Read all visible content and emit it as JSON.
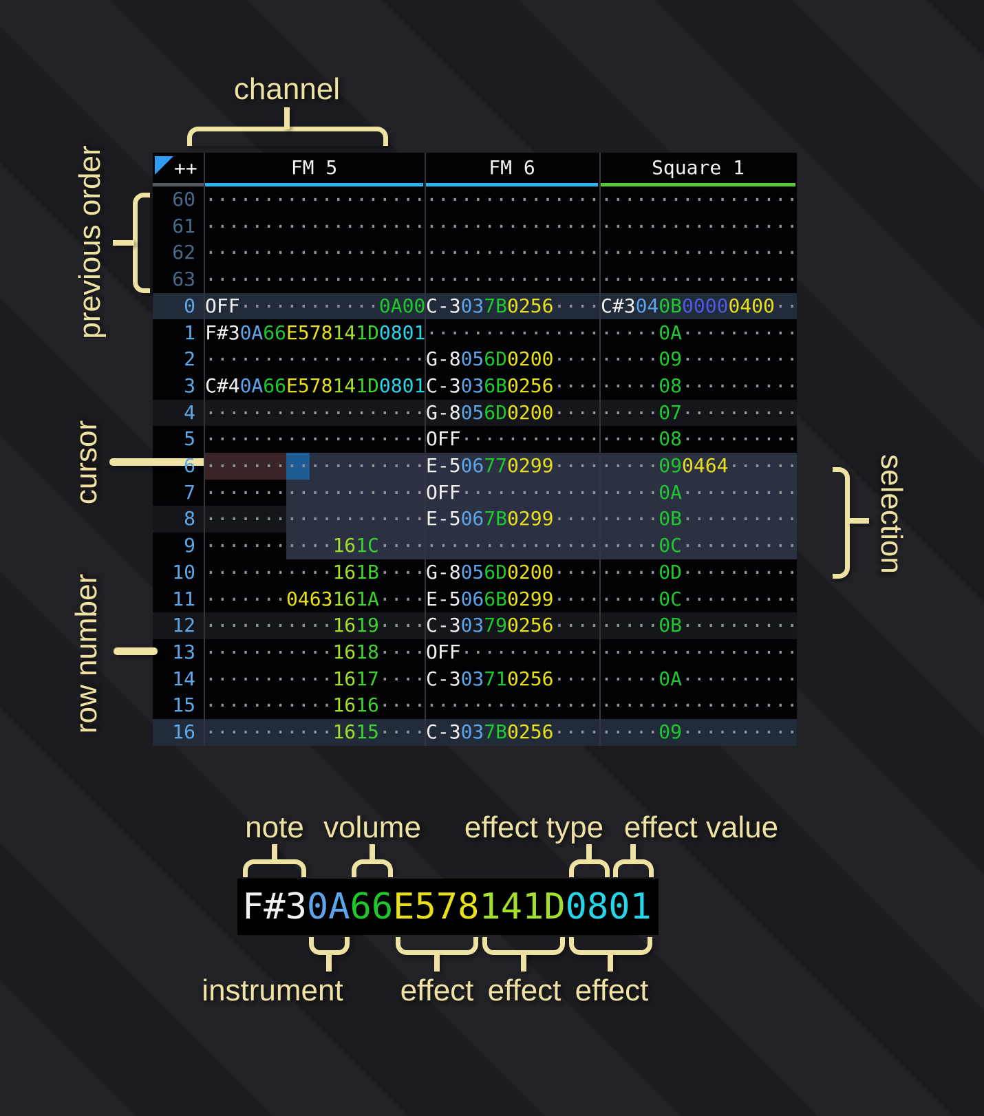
{
  "header": {
    "corner": "++",
    "channels": [
      {
        "label": "FM 5",
        "underline": "#29b4f2"
      },
      {
        "label": "FM 6",
        "underline": "#29b4f2"
      },
      {
        "label": "Square 1",
        "underline": "#55cb33"
      }
    ]
  },
  "colors": {
    "table-bg": "#020205",
    "c-n": "#f2f2f2",
    "c-i": "#5ca5ea",
    "c-v": "#1ec92e",
    "c-ey": "#e8e019",
    "c-el": "#a3e02b",
    "c-eg": "#3bd32c",
    "c-ec": "#27d6e8",
    "c-ei": "#5457e2",
    "c-d": "#909497",
    "rownum": "#5fa8e8",
    "rownum-dim": "#49698a",
    "underline-corner": "#55585e",
    "sel": "#2b3142",
    "cursor": "#1e5c96",
    "cursor-row": "#3b2427",
    "h1": "#15161b",
    "h2": "#222b39",
    "ann": "#efe3a4"
  },
  "annotations": {
    "channel": "channel",
    "previous_order": "previous order",
    "cursor": "cursor",
    "row_number": "row number",
    "selection": "selection",
    "note": "note",
    "volume": "volume",
    "effect_type": "effect type",
    "effect_value": "effect value",
    "instrument": "instrument",
    "effect": "effect"
  },
  "legend": {
    "segments": [
      [
        "F#3",
        "n"
      ],
      [
        "0A",
        "i"
      ],
      [
        "66",
        "v"
      ],
      [
        "E578",
        "ey"
      ],
      [
        "141D",
        "el"
      ],
      [
        "0801",
        "ec"
      ]
    ]
  },
  "pattern": {
    "rows": [
      {
        "num": "60",
        "dim": true,
        "hl": "",
        "fm5": [
          [
            "...................",
            "d"
          ]
        ],
        "fm6": [
          [
            "...............",
            "d"
          ]
        ],
        "s1": [
          [
            ".................",
            "d"
          ]
        ]
      },
      {
        "num": "61",
        "dim": true,
        "hl": "",
        "fm5": [
          [
            "...................",
            "d"
          ]
        ],
        "fm6": [
          [
            "...............",
            "d"
          ]
        ],
        "s1": [
          [
            ".................",
            "d"
          ]
        ]
      },
      {
        "num": "62",
        "dim": true,
        "hl": "",
        "fm5": [
          [
            "...................",
            "d"
          ]
        ],
        "fm6": [
          [
            "...............",
            "d"
          ]
        ],
        "s1": [
          [
            ".................",
            "d"
          ]
        ]
      },
      {
        "num": "63",
        "dim": true,
        "hl": "",
        "fm5": [
          [
            "...................",
            "d"
          ]
        ],
        "fm6": [
          [
            "...............",
            "d"
          ]
        ],
        "s1": [
          [
            ".................",
            "d"
          ]
        ]
      },
      {
        "num": "0",
        "dim": false,
        "hl": "h2",
        "fm5": [
          [
            "OFF",
            "n"
          ],
          [
            "............",
            "d"
          ],
          [
            "0A00",
            "v"
          ]
        ],
        "fm6": [
          [
            "C-3",
            "n"
          ],
          [
            "03",
            "i"
          ],
          [
            "7B",
            "v"
          ],
          [
            "0256",
            "ey"
          ],
          [
            "....",
            "d"
          ]
        ],
        "s1": [
          [
            "C#3",
            "n"
          ],
          [
            "04",
            "i"
          ],
          [
            "0B",
            "v"
          ],
          [
            "0000",
            "ei"
          ],
          [
            "0400",
            "ey"
          ],
          [
            "..",
            "d"
          ]
        ]
      },
      {
        "num": "1",
        "dim": false,
        "hl": "",
        "fm5": [
          [
            "F#3",
            "n"
          ],
          [
            "0A",
            "i"
          ],
          [
            "66",
            "v"
          ],
          [
            "E578",
            "ey"
          ],
          [
            "14",
            "el"
          ],
          [
            "1D",
            "eg"
          ],
          [
            "0801",
            "ec"
          ]
        ],
        "fm6": [
          [
            "...............",
            "d"
          ]
        ],
        "s1": [
          [
            ".....",
            "d"
          ],
          [
            "0A",
            "v"
          ],
          [
            "..........",
            "d"
          ]
        ]
      },
      {
        "num": "2",
        "dim": false,
        "hl": "",
        "fm5": [
          [
            "...................",
            "d"
          ]
        ],
        "fm6": [
          [
            "G-8",
            "n"
          ],
          [
            "05",
            "i"
          ],
          [
            "6D",
            "v"
          ],
          [
            "0200",
            "ey"
          ],
          [
            "....",
            "d"
          ]
        ],
        "s1": [
          [
            ".....",
            "d"
          ],
          [
            "09",
            "v"
          ],
          [
            "..........",
            "d"
          ]
        ]
      },
      {
        "num": "3",
        "dim": false,
        "hl": "",
        "fm5": [
          [
            "C#4",
            "n"
          ],
          [
            "0A",
            "i"
          ],
          [
            "66",
            "v"
          ],
          [
            "E578",
            "ey"
          ],
          [
            "14",
            "el"
          ],
          [
            "1D",
            "eg"
          ],
          [
            "0801",
            "ec"
          ]
        ],
        "fm6": [
          [
            "C-3",
            "n"
          ],
          [
            "03",
            "i"
          ],
          [
            "6B",
            "v"
          ],
          [
            "0256",
            "ey"
          ],
          [
            "....",
            "d"
          ]
        ],
        "s1": [
          [
            ".....",
            "d"
          ],
          [
            "08",
            "v"
          ],
          [
            "..........",
            "d"
          ]
        ]
      },
      {
        "num": "4",
        "dim": false,
        "hl": "h1",
        "fm5": [
          [
            "...................",
            "d"
          ]
        ],
        "fm6": [
          [
            "G-8",
            "n"
          ],
          [
            "05",
            "i"
          ],
          [
            "6D",
            "v"
          ],
          [
            "0200",
            "ey"
          ],
          [
            "....",
            "d"
          ]
        ],
        "s1": [
          [
            ".....",
            "d"
          ],
          [
            "07",
            "v"
          ],
          [
            "..........",
            "d"
          ]
        ]
      },
      {
        "num": "5",
        "dim": false,
        "hl": "",
        "fm5": [
          [
            "...................",
            "d"
          ]
        ],
        "fm6": [
          [
            "OFF",
            "n"
          ],
          [
            "............",
            "d"
          ]
        ],
        "s1": [
          [
            ".....",
            "d"
          ],
          [
            "08",
            "v"
          ],
          [
            "..........",
            "d"
          ]
        ]
      },
      {
        "num": "6",
        "dim": false,
        "hl": "",
        "fm5": [
          [
            "...................",
            "d"
          ]
        ],
        "fm6": [
          [
            "E-5",
            "n"
          ],
          [
            "06",
            "i"
          ],
          [
            "77",
            "v"
          ],
          [
            "0299",
            "ey"
          ],
          [
            "....",
            "d"
          ]
        ],
        "s1": [
          [
            ".....",
            "d"
          ],
          [
            "09",
            "v"
          ],
          [
            "0464",
            "ey"
          ],
          [
            "......",
            "d"
          ]
        ]
      },
      {
        "num": "7",
        "dim": false,
        "hl": "",
        "fm5": [
          [
            "...................",
            "d"
          ]
        ],
        "fm6": [
          [
            "OFF",
            "n"
          ],
          [
            "............",
            "d"
          ]
        ],
        "s1": [
          [
            ".....",
            "d"
          ],
          [
            "0A",
            "v"
          ],
          [
            "..........",
            "d"
          ]
        ]
      },
      {
        "num": "8",
        "dim": false,
        "hl": "h1",
        "fm5": [
          [
            "...................",
            "d"
          ]
        ],
        "fm6": [
          [
            "E-5",
            "n"
          ],
          [
            "06",
            "i"
          ],
          [
            "7B",
            "v"
          ],
          [
            "0299",
            "ey"
          ],
          [
            "....",
            "d"
          ]
        ],
        "s1": [
          [
            ".....",
            "d"
          ],
          [
            "0B",
            "v"
          ],
          [
            "..........",
            "d"
          ]
        ]
      },
      {
        "num": "9",
        "dim": false,
        "hl": "",
        "fm5": [
          [
            "...........",
            "d"
          ],
          [
            "16",
            "el"
          ],
          [
            "1C",
            "eg"
          ],
          [
            "....",
            "d"
          ]
        ],
        "fm6": [
          [
            "...............",
            "d"
          ]
        ],
        "s1": [
          [
            ".....",
            "d"
          ],
          [
            "0C",
            "v"
          ],
          [
            "..........",
            "d"
          ]
        ]
      },
      {
        "num": "10",
        "dim": false,
        "hl": "",
        "fm5": [
          [
            "...........",
            "d"
          ],
          [
            "16",
            "el"
          ],
          [
            "1B",
            "eg"
          ],
          [
            "....",
            "d"
          ]
        ],
        "fm6": [
          [
            "G-8",
            "n"
          ],
          [
            "05",
            "i"
          ],
          [
            "6D",
            "v"
          ],
          [
            "0200",
            "ey"
          ],
          [
            "....",
            "d"
          ]
        ],
        "s1": [
          [
            ".....",
            "d"
          ],
          [
            "0D",
            "v"
          ],
          [
            "..........",
            "d"
          ]
        ]
      },
      {
        "num": "11",
        "dim": false,
        "hl": "",
        "fm5": [
          [
            ".......",
            "d"
          ],
          [
            "0463",
            "ey"
          ],
          [
            "16",
            "el"
          ],
          [
            "1A",
            "eg"
          ],
          [
            "....",
            "d"
          ]
        ],
        "fm6": [
          [
            "E-5",
            "n"
          ],
          [
            "06",
            "i"
          ],
          [
            "6B",
            "v"
          ],
          [
            "0299",
            "ey"
          ],
          [
            "....",
            "d"
          ]
        ],
        "s1": [
          [
            ".....",
            "d"
          ],
          [
            "0C",
            "v"
          ],
          [
            "..........",
            "d"
          ]
        ]
      },
      {
        "num": "12",
        "dim": false,
        "hl": "h1",
        "fm5": [
          [
            "...........",
            "d"
          ],
          [
            "16",
            "el"
          ],
          [
            "19",
            "eg"
          ],
          [
            "....",
            "d"
          ]
        ],
        "fm6": [
          [
            "C-3",
            "n"
          ],
          [
            "03",
            "i"
          ],
          [
            "79",
            "v"
          ],
          [
            "0256",
            "ey"
          ],
          [
            "....",
            "d"
          ]
        ],
        "s1": [
          [
            ".....",
            "d"
          ],
          [
            "0B",
            "v"
          ],
          [
            "..........",
            "d"
          ]
        ]
      },
      {
        "num": "13",
        "dim": false,
        "hl": "",
        "fm5": [
          [
            "...........",
            "d"
          ],
          [
            "16",
            "el"
          ],
          [
            "18",
            "eg"
          ],
          [
            "....",
            "d"
          ]
        ],
        "fm6": [
          [
            "OFF",
            "n"
          ],
          [
            "............",
            "d"
          ]
        ],
        "s1": [
          [
            ".................",
            "d"
          ]
        ]
      },
      {
        "num": "14",
        "dim": false,
        "hl": "",
        "fm5": [
          [
            "...........",
            "d"
          ],
          [
            "16",
            "el"
          ],
          [
            "17",
            "eg"
          ],
          [
            "....",
            "d"
          ]
        ],
        "fm6": [
          [
            "C-3",
            "n"
          ],
          [
            "03",
            "i"
          ],
          [
            "71",
            "v"
          ],
          [
            "0256",
            "ey"
          ],
          [
            "....",
            "d"
          ]
        ],
        "s1": [
          [
            ".....",
            "d"
          ],
          [
            "0A",
            "v"
          ],
          [
            "..........",
            "d"
          ]
        ]
      },
      {
        "num": "15",
        "dim": false,
        "hl": "",
        "fm5": [
          [
            "...........",
            "d"
          ],
          [
            "16",
            "el"
          ],
          [
            "16",
            "eg"
          ],
          [
            "....",
            "d"
          ]
        ],
        "fm6": [
          [
            "...............",
            "d"
          ]
        ],
        "s1": [
          [
            ".................",
            "d"
          ]
        ]
      },
      {
        "num": "16",
        "dim": false,
        "hl": "h2",
        "fm5": [
          [
            "...........",
            "d"
          ],
          [
            "16",
            "el"
          ],
          [
            "15",
            "eg"
          ],
          [
            "....",
            "d"
          ]
        ],
        "fm6": [
          [
            "C-3",
            "n"
          ],
          [
            "03",
            "i"
          ],
          [
            "7B",
            "v"
          ],
          [
            "0256",
            "ey"
          ],
          [
            "....",
            "d"
          ]
        ],
        "s1": [
          [
            ".....",
            "d"
          ],
          [
            "09",
            "v"
          ],
          [
            "..........",
            "d"
          ]
        ]
      }
    ]
  }
}
